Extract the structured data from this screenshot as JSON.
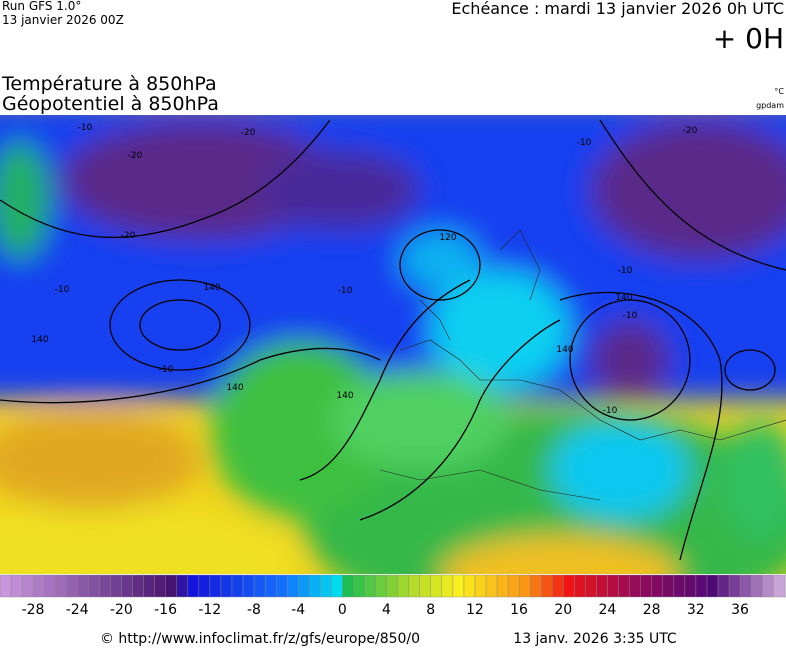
{
  "header": {
    "run": "Run GFS 1.0°",
    "run_date": "13 janvier 2026 00Z",
    "forecast": "Echéance : mardi 13 janvier 2026 0h UTC",
    "lead": "+ 0H"
  },
  "titles": {
    "temperature": "Température à 850hPa",
    "geopotential": "Géopotentiel à 850hPa",
    "temp_unit": "°C",
    "geo_unit": "gpdam"
  },
  "map": {
    "contour_labels": [
      "-10",
      "-20",
      "-20",
      "-20",
      "-10",
      "-10",
      "-10",
      "-10",
      "120",
      "140",
      "140",
      "140",
      "140",
      "140",
      "140",
      "-10",
      "-10",
      "-10",
      "-20"
    ]
  },
  "legend": {
    "ticks": [
      -28,
      -24,
      -20,
      -16,
      -12,
      -8,
      -4,
      0,
      4,
      8,
      12,
      16,
      20,
      24,
      28,
      32,
      36
    ]
  },
  "footer": {
    "source": "© http://www.infoclimat.fr/z/gfs/europe/850/0",
    "generated": "13 janv. 2026  3:35 UTC"
  }
}
